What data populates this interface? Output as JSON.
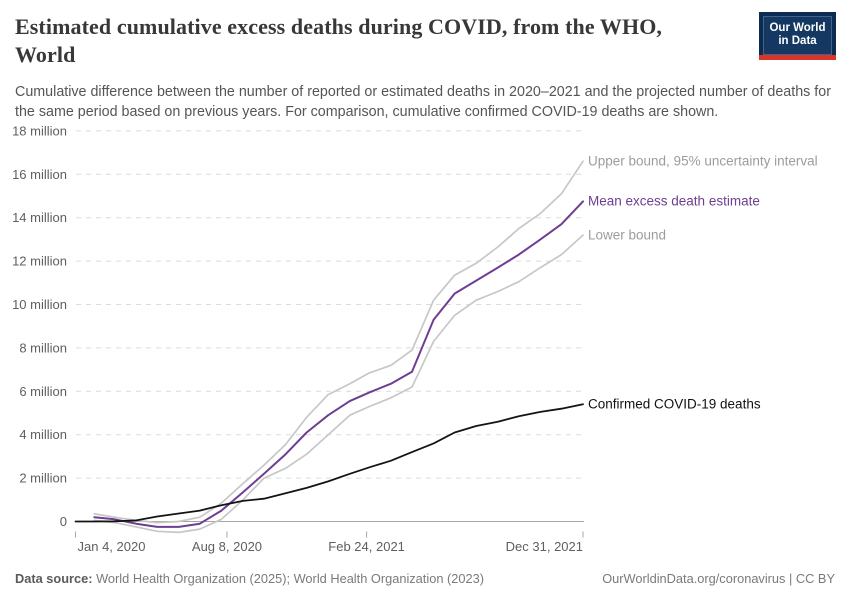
{
  "header": {
    "title": "Estimated cumulative excess deaths during COVID, from the WHO, World",
    "title_lines": [
      "Estimated cumulative excess deaths during COVID, from the WHO,",
      "World"
    ],
    "subtitle": "Cumulative difference between the number of reported or estimated deaths in 2020–2021 and the projected number of deaths for the same period based on previous years. For comparison, cumulative confirmed COVID-19 deaths are shown.",
    "logo": {
      "line1": "Our World",
      "line2": "in Data"
    }
  },
  "footer": {
    "datasource_label": "Data source:",
    "datasource_text": " World Health Organization (2025); World Health Organization (2023)",
    "right_text": "OurWorldinData.org/coronavirus | CC BY"
  },
  "colors": {
    "purple": "#6d3e91",
    "bound_line_gray": "#c7c7c7",
    "bound_label_gray": "#9c9c9c",
    "confirmed_black": "#141414",
    "grid_gray": "#dbdbdb",
    "axis_gray": "#a6a6a6",
    "tick_text_gray": "#5f5f5f",
    "logo_navy": "#0b2b50",
    "logo_inner_navy": "#143862",
    "logo_red": "#d8352a"
  },
  "chart_data": {
    "type": "line",
    "unit": "million deaths (cumulative)",
    "x_domain_days": [
      0,
      727
    ],
    "ylim_millions": [
      0,
      18
    ],
    "grid": "dashed-horizontal",
    "x_ticks": [
      {
        "day": 0,
        "label": "Jan 4, 2020"
      },
      {
        "day": 217,
        "label": "Aug 8, 2020"
      },
      {
        "day": 417,
        "label": "Feb 24, 2021"
      },
      {
        "day": 727,
        "label": "Dec 31, 2021"
      }
    ],
    "y_ticks": [
      {
        "value": 0,
        "label": "0"
      },
      {
        "value": 2,
        "label": "2 million"
      },
      {
        "value": 4,
        "label": "4 million"
      },
      {
        "value": 6,
        "label": "6 million"
      },
      {
        "value": 8,
        "label": "8 million"
      },
      {
        "value": 10,
        "label": "10 million"
      },
      {
        "value": 12,
        "label": "12 million"
      },
      {
        "value": 14,
        "label": "14 million"
      },
      {
        "value": 16,
        "label": "16 million"
      },
      {
        "value": 18,
        "label": "18 million"
      }
    ],
    "month_end_days": [
      27,
      56,
      87,
      117,
      148,
      178,
      209,
      240,
      270,
      301,
      331,
      362,
      393,
      421,
      452,
      482,
      513,
      543,
      574,
      605,
      635,
      666,
      696,
      727
    ],
    "series": [
      {
        "id": "upper-bound",
        "name": "Upper bound, 95% uncertainty interval",
        "color": "#c7c7c7",
        "label_color": "#9c9c9c",
        "width": 1.7,
        "values_millions": [
          0.35,
          0.2,
          0.05,
          -0.05,
          0,
          0.2,
          0.85,
          1.75,
          2.6,
          3.55,
          4.8,
          5.85,
          6.35,
          6.85,
          7.2,
          7.9,
          10.2,
          11.35,
          11.9,
          12.65,
          13.5,
          14.2,
          15.1,
          16.6
        ]
      },
      {
        "id": "lower-bound",
        "name": "Lower bound",
        "color": "#c7c7c7",
        "label_color": "#9c9c9c",
        "width": 1.7,
        "values_millions": [
          0.05,
          -0.05,
          -0.25,
          -0.45,
          -0.5,
          -0.35,
          0.1,
          1.0,
          2.0,
          2.45,
          3.1,
          4.0,
          4.9,
          5.3,
          5.7,
          6.2,
          8.3,
          9.5,
          10.2,
          10.6,
          11.05,
          11.7,
          12.3,
          13.2
        ]
      },
      {
        "id": "mean-excess",
        "name": "Mean excess death estimate",
        "color": "#6d3e91",
        "label_color": "#6d3e91",
        "width": 2,
        "values_millions": [
          0.2,
          0.1,
          -0.1,
          -0.25,
          -0.25,
          -0.1,
          0.5,
          1.35,
          2.2,
          3.1,
          4.1,
          4.9,
          5.55,
          5.95,
          6.35,
          6.9,
          9.3,
          10.5,
          11.1,
          11.7,
          12.3,
          13.0,
          13.7,
          14.75
        ]
      },
      {
        "id": "confirmed-deaths",
        "name": "Confirmed COVID-19 deaths",
        "color": "#141414",
        "label_color": "#111111",
        "width": 1.8,
        "days": [
          0,
          27,
          56,
          87,
          117,
          148,
          178,
          209,
          240,
          270,
          301,
          331,
          362,
          393,
          421,
          452,
          482,
          513,
          543,
          574,
          605,
          635,
          666,
          696,
          727
        ],
        "values_millions": [
          0,
          0,
          0.01,
          0.05,
          0.23,
          0.37,
          0.5,
          0.75,
          0.95,
          1.05,
          1.3,
          1.55,
          1.85,
          2.2,
          2.5,
          2.8,
          3.2,
          3.6,
          4.1,
          4.4,
          4.6,
          4.85,
          5.05,
          5.2,
          5.4
        ]
      }
    ]
  }
}
